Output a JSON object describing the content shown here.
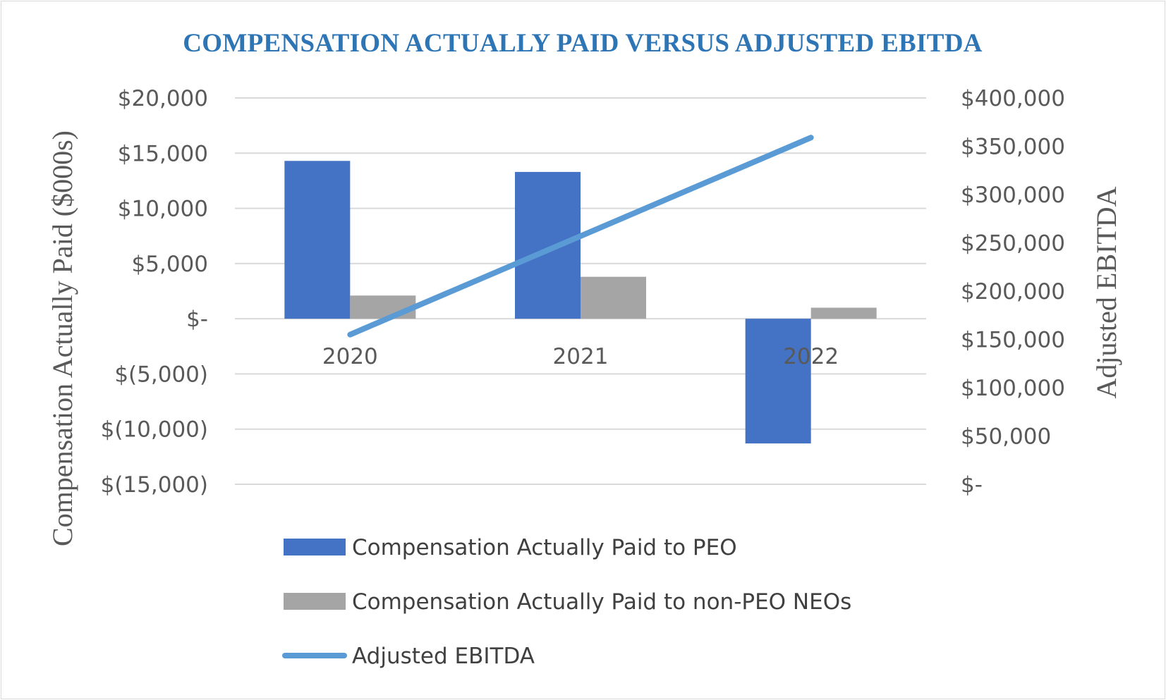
{
  "chart_data": {
    "type": "bar",
    "title": "COMPENSATION ACTUALLY PAID VERSUS ADJUSTED EBITDA",
    "categories": [
      "2020",
      "2021",
      "2022"
    ],
    "series": [
      {
        "name": "Compensation Actually Paid to PEO",
        "kind": "bar",
        "axis": "left",
        "color": "#4472c4",
        "values": [
          14300,
          13300,
          -11300
        ]
      },
      {
        "name": "Compensation Actually Paid to non-PEO NEOs",
        "kind": "bar",
        "axis": "left",
        "color": "#a5a5a5",
        "values": [
          2100,
          3800,
          1000
        ]
      },
      {
        "name": "Adjusted EBITDA",
        "kind": "line",
        "axis": "right",
        "color": "#5b9bd5",
        "values": [
          155000,
          257000,
          359000
        ]
      }
    ],
    "y_left": {
      "label": "Compensation Actually Paid ($000s)",
      "range": [
        -15000,
        20000
      ],
      "ticks": [
        20000,
        15000,
        10000,
        5000,
        0,
        -5000,
        -10000,
        -15000
      ],
      "tick_labels": [
        "$20,000",
        "$15,000",
        "$10,000",
        "$5,000",
        "$-",
        "$(5,000)",
        "$(10,000)",
        "$(15,000)"
      ]
    },
    "y_right": {
      "label": "Adjusted EBITDA",
      "range": [
        0,
        400000
      ],
      "ticks": [
        400000,
        350000,
        300000,
        250000,
        200000,
        150000,
        100000,
        50000,
        0
      ],
      "tick_labels": [
        "$400,000",
        "$350,000",
        "$300,000",
        "$250,000",
        "$200,000",
        "$150,000",
        "$100,000",
        "$50,000",
        "$-"
      ]
    },
    "grid": true,
    "legend_position": "bottom"
  }
}
